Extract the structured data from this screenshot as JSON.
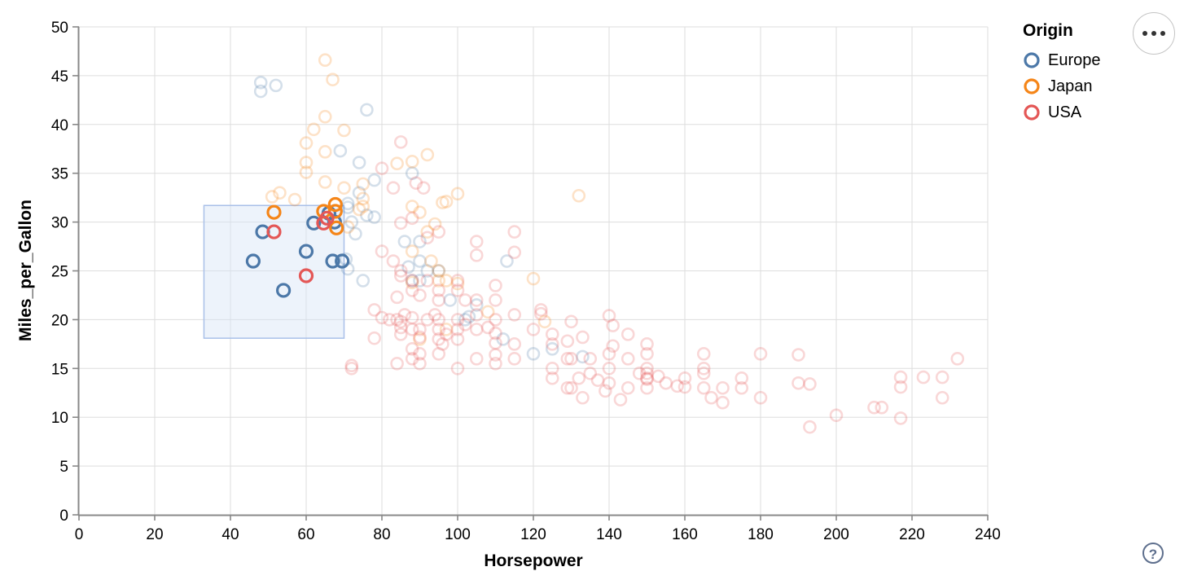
{
  "chart_data": {
    "type": "scatter",
    "title": "",
    "xlabel": "Horsepower",
    "ylabel": "Miles_per_Gallon",
    "xlim": [
      0,
      240
    ],
    "ylim": [
      0,
      50
    ],
    "x_ticks": [
      0,
      20,
      40,
      60,
      80,
      100,
      120,
      140,
      160,
      180,
      200,
      220,
      240
    ],
    "y_ticks": [
      0,
      5,
      10,
      15,
      20,
      25,
      30,
      35,
      40,
      45,
      50
    ],
    "grid": true,
    "legend_position": "top-right",
    "legend_title": "Origin",
    "point_style": "open-circle",
    "brush_selection": {
      "x": [
        33,
        70
      ],
      "y": [
        18.1,
        31.7
      ],
      "fill": "#d6e4f7",
      "stroke": "#a9c0e9"
    },
    "series": [
      {
        "name": "Europe",
        "color": "#4c78a8",
        "selected": [
          [
            46,
            26
          ],
          [
            48.5,
            29
          ],
          [
            54,
            23
          ],
          [
            60,
            27
          ],
          [
            62,
            29.9
          ],
          [
            66,
            30.9
          ],
          [
            67.5,
            30
          ],
          [
            67,
            26
          ],
          [
            69.5,
            26
          ]
        ],
        "unselected": [
          [
            48,
            44.3
          ],
          [
            52,
            44
          ],
          [
            48,
            43.4
          ],
          [
            76,
            41.5
          ],
          [
            69,
            37.3
          ],
          [
            74,
            36.1
          ],
          [
            78,
            34.3
          ],
          [
            88,
            35
          ],
          [
            74,
            33
          ],
          [
            71,
            31.9
          ],
          [
            71,
            31.5
          ],
          [
            76,
            30.7
          ],
          [
            78,
            30.5
          ],
          [
            72,
            30
          ],
          [
            73,
            28.8
          ],
          [
            70.5,
            26.2
          ],
          [
            71,
            25.2
          ],
          [
            86,
            28
          ],
          [
            90,
            28
          ],
          [
            90,
            26
          ],
          [
            92,
            25
          ],
          [
            87,
            25.4
          ],
          [
            95,
            25
          ],
          [
            88,
            24
          ],
          [
            90,
            24
          ],
          [
            75,
            24
          ],
          [
            113,
            26
          ],
          [
            105,
            21.5
          ],
          [
            103,
            20.3
          ],
          [
            98,
            22
          ],
          [
            102,
            20
          ],
          [
            112,
            18
          ],
          [
            125,
            17
          ],
          [
            133,
            16.2
          ],
          [
            120,
            16.5
          ]
        ]
      },
      {
        "name": "Japan",
        "color": "#f58518",
        "selected": [
          [
            51.5,
            31
          ],
          [
            64.6,
            31.1
          ],
          [
            67.7,
            31.8
          ],
          [
            67.7,
            31.1
          ],
          [
            68,
            29.4
          ]
        ],
        "unselected": [
          [
            65,
            46.6
          ],
          [
            67,
            44.6
          ],
          [
            65,
            40.8
          ],
          [
            62,
            39.5
          ],
          [
            70,
            39.4
          ],
          [
            60,
            38.1
          ],
          [
            65,
            37.2
          ],
          [
            92,
            36.9
          ],
          [
            60,
            36.1
          ],
          [
            84,
            36
          ],
          [
            88,
            36.2
          ],
          [
            60,
            35.1
          ],
          [
            65,
            34.1
          ],
          [
            75,
            33.9
          ],
          [
            70,
            33.5
          ],
          [
            53,
            33
          ],
          [
            51,
            32.6
          ],
          [
            57,
            32.3
          ],
          [
            100,
            32.9
          ],
          [
            97,
            32.1
          ],
          [
            96,
            32
          ],
          [
            132,
            32.7
          ],
          [
            75,
            32.4
          ],
          [
            88,
            31.6
          ],
          [
            75,
            31.6
          ],
          [
            74,
            31.3
          ],
          [
            90,
            31
          ],
          [
            94,
            29.8
          ],
          [
            92,
            29
          ],
          [
            71,
            29.5
          ],
          [
            88,
            27
          ],
          [
            93,
            26
          ],
          [
            95,
            25
          ],
          [
            97,
            24
          ],
          [
            95,
            24
          ],
          [
            88,
            23.8
          ],
          [
            120,
            24.2
          ],
          [
            108,
            20.8
          ],
          [
            123,
            19.8
          ],
          [
            97,
            19
          ],
          [
            90,
            18
          ],
          [
            100,
            23.7
          ]
        ]
      },
      {
        "name": "USA",
        "color": "#e45756",
        "selected": [
          [
            51.5,
            29
          ],
          [
            60,
            24.5
          ],
          [
            64.6,
            29.9
          ],
          [
            65.5,
            30.4
          ]
        ],
        "unselected": [
          [
            85,
            38.2
          ],
          [
            80,
            35.5
          ],
          [
            83,
            33.5
          ],
          [
            89,
            34
          ],
          [
            91,
            33.5
          ],
          [
            88,
            30.4
          ],
          [
            85,
            29.9
          ],
          [
            95,
            29
          ],
          [
            92,
            28.4
          ],
          [
            105,
            28
          ],
          [
            105,
            26.6
          ],
          [
            115,
            29
          ],
          [
            115,
            26.9
          ],
          [
            80,
            27
          ],
          [
            83,
            26
          ],
          [
            85,
            25
          ],
          [
            85,
            24.5
          ],
          [
            88,
            24
          ],
          [
            88,
            23
          ],
          [
            90,
            22.5
          ],
          [
            92,
            24
          ],
          [
            95,
            23
          ],
          [
            95,
            22
          ],
          [
            100,
            24
          ],
          [
            100,
            23
          ],
          [
            102,
            22
          ],
          [
            105,
            22
          ],
          [
            110,
            23.5
          ],
          [
            110,
            22
          ],
          [
            84,
            22.3
          ],
          [
            78,
            21
          ],
          [
            78,
            18.1
          ],
          [
            80,
            20.2
          ],
          [
            82,
            20
          ],
          [
            84,
            20
          ],
          [
            85,
            19.8
          ],
          [
            85,
            19.2
          ],
          [
            85,
            18.5
          ],
          [
            86,
            20.5
          ],
          [
            88,
            20.2
          ],
          [
            88,
            19
          ],
          [
            90,
            19
          ],
          [
            90,
            18.2
          ],
          [
            88,
            17
          ],
          [
            90,
            16.5
          ],
          [
            92,
            20
          ],
          [
            94,
            20.5
          ],
          [
            95,
            20
          ],
          [
            95,
            19
          ],
          [
            97,
            18.5
          ],
          [
            95,
            18
          ],
          [
            96,
            17.5
          ],
          [
            100,
            20
          ],
          [
            100,
            19
          ],
          [
            100,
            18
          ],
          [
            102,
            19.5
          ],
          [
            105,
            20.5
          ],
          [
            105,
            19
          ],
          [
            108,
            19.2
          ],
          [
            110,
            20
          ],
          [
            110,
            18.6
          ],
          [
            110,
            17.6
          ],
          [
            115,
            20.5
          ],
          [
            115,
            17.5
          ],
          [
            84,
            15.5
          ],
          [
            88,
            16
          ],
          [
            90,
            15.5
          ],
          [
            95,
            16.5
          ],
          [
            100,
            15
          ],
          [
            105,
            16
          ],
          [
            110,
            16.4
          ],
          [
            110,
            15.5
          ],
          [
            115,
            16
          ],
          [
            72,
            15
          ],
          [
            72,
            15.3
          ],
          [
            120,
            19
          ],
          [
            122,
            20.6
          ],
          [
            122,
            21
          ],
          [
            125,
            18.5
          ],
          [
            125,
            17.5
          ],
          [
            125,
            15
          ],
          [
            125,
            14
          ],
          [
            129,
            17.8
          ],
          [
            129,
            16
          ],
          [
            129,
            13
          ],
          [
            130,
            19.8
          ],
          [
            130,
            16
          ],
          [
            130,
            13
          ],
          [
            132,
            14
          ],
          [
            133,
            18.2
          ],
          [
            133,
            12
          ],
          [
            135,
            16
          ],
          [
            135,
            14.5
          ],
          [
            137,
            13.8
          ],
          [
            139,
            12.7
          ],
          [
            140,
            20.4
          ],
          [
            141,
            19.4
          ],
          [
            141,
            17.3
          ],
          [
            140,
            16.5
          ],
          [
            140,
            15
          ],
          [
            140,
            13.5
          ],
          [
            143,
            11.8
          ],
          [
            145,
            18.5
          ],
          [
            145,
            16
          ],
          [
            145,
            13
          ],
          [
            148,
            14.5
          ],
          [
            150,
            17.5
          ],
          [
            150,
            16.5
          ],
          [
            150,
            15
          ],
          [
            150,
            14.5
          ],
          [
            150,
            14
          ],
          [
            150,
            13.9
          ],
          [
            150,
            13
          ],
          [
            153,
            14.2
          ],
          [
            155,
            13.5
          ],
          [
            158,
            13.2
          ],
          [
            160,
            14
          ],
          [
            160,
            13.1
          ],
          [
            165,
            16.5
          ],
          [
            165,
            15
          ],
          [
            165,
            14.5
          ],
          [
            165,
            13
          ],
          [
            167,
            12
          ],
          [
            170,
            13
          ],
          [
            170,
            11.5
          ],
          [
            175,
            14
          ],
          [
            175,
            13
          ],
          [
            180,
            16.5
          ],
          [
            180,
            12
          ],
          [
            190,
            16.4
          ],
          [
            190,
            13.5
          ],
          [
            193,
            13.4
          ],
          [
            193,
            9
          ],
          [
            200,
            10.2
          ],
          [
            210,
            11
          ],
          [
            212,
            11
          ],
          [
            217,
            14.1
          ],
          [
            217,
            13.1
          ],
          [
            217,
            9.9
          ],
          [
            223,
            14.1
          ],
          [
            228,
            14.1
          ],
          [
            228,
            12
          ],
          [
            232,
            16
          ]
        ]
      }
    ]
  },
  "axes": {
    "x_title": "Horsepower",
    "y_title": "Miles_per_Gallon"
  },
  "legend": {
    "title": "Origin",
    "items": [
      {
        "label": "Europe",
        "color": "#4c78a8"
      },
      {
        "label": "Japan",
        "color": "#f58518"
      },
      {
        "label": "USA",
        "color": "#e45756"
      }
    ]
  },
  "controls": {
    "menu_tooltip": "actions menu",
    "help_label": "?"
  },
  "style": {
    "grid_color": "#dddddd",
    "axis_color": "#888888",
    "faded_opacity": 0.24
  }
}
